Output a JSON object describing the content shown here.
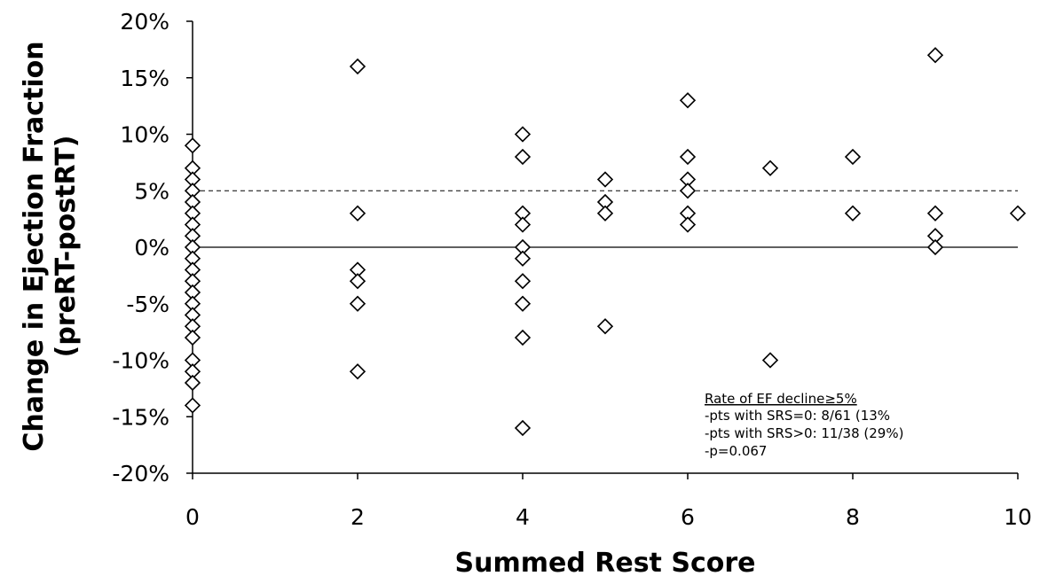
{
  "chart_data": {
    "type": "scatter",
    "title": "",
    "xlabel": "Summed Rest Score",
    "ylabel_line1": "Change in Ejection Fraction",
    "ylabel_line2": "(preRT-postRT)",
    "xlim": [
      0,
      10
    ],
    "ylim": [
      -20,
      20
    ],
    "x_ticks": [
      0,
      2,
      4,
      6,
      8,
      10
    ],
    "y_ticks": [
      -20,
      -15,
      -10,
      -5,
      0,
      5,
      10,
      15,
      20
    ],
    "y_tick_labels": [
      "-20%",
      "-15%",
      "-10%",
      "-5%",
      "0%",
      "5%",
      "10%",
      "15%",
      "20%"
    ],
    "grid": false,
    "marker": "open-diamond",
    "reference_lines": [
      {
        "y": 0,
        "style": "solid"
      },
      {
        "y": 5,
        "style": "dashed"
      }
    ],
    "points": [
      [
        0,
        9
      ],
      [
        0,
        7
      ],
      [
        0,
        6
      ],
      [
        0,
        5
      ],
      [
        0,
        4
      ],
      [
        0,
        3
      ],
      [
        0,
        2
      ],
      [
        0,
        1
      ],
      [
        0,
        0
      ],
      [
        0,
        -1
      ],
      [
        0,
        -2
      ],
      [
        0,
        -3
      ],
      [
        0,
        -4
      ],
      [
        0,
        -5
      ],
      [
        0,
        -6
      ],
      [
        0,
        -7
      ],
      [
        0,
        -8
      ],
      [
        0,
        -10
      ],
      [
        0,
        -11
      ],
      [
        0,
        -12
      ],
      [
        0,
        -14
      ],
      [
        2,
        16
      ],
      [
        2,
        3
      ],
      [
        2,
        -2
      ],
      [
        2,
        -3
      ],
      [
        2,
        -5
      ],
      [
        2,
        -11
      ],
      [
        4,
        10
      ],
      [
        4,
        8
      ],
      [
        4,
        3
      ],
      [
        4,
        2
      ],
      [
        4,
        0
      ],
      [
        4,
        -1
      ],
      [
        4,
        -3
      ],
      [
        4,
        -5
      ],
      [
        4,
        -8
      ],
      [
        4,
        -16
      ],
      [
        5,
        6
      ],
      [
        5,
        4
      ],
      [
        5,
        3
      ],
      [
        5,
        -7
      ],
      [
        6,
        13
      ],
      [
        6,
        8
      ],
      [
        6,
        6
      ],
      [
        6,
        5
      ],
      [
        6,
        3
      ],
      [
        6,
        2
      ],
      [
        7,
        7
      ],
      [
        7,
        -10
      ],
      [
        8,
        8
      ],
      [
        8,
        3
      ],
      [
        9,
        17
      ],
      [
        9,
        3
      ],
      [
        9,
        1
      ],
      [
        9,
        0
      ],
      [
        10,
        3
      ]
    ],
    "annotation": {
      "heading": "Rate of EF decline≥5%",
      "lines": [
        "-pts with SRS=0:  8/61 (13%",
        "-pts with  SRS>0:  11/38 (29%)",
        "-p=0.067"
      ]
    }
  }
}
